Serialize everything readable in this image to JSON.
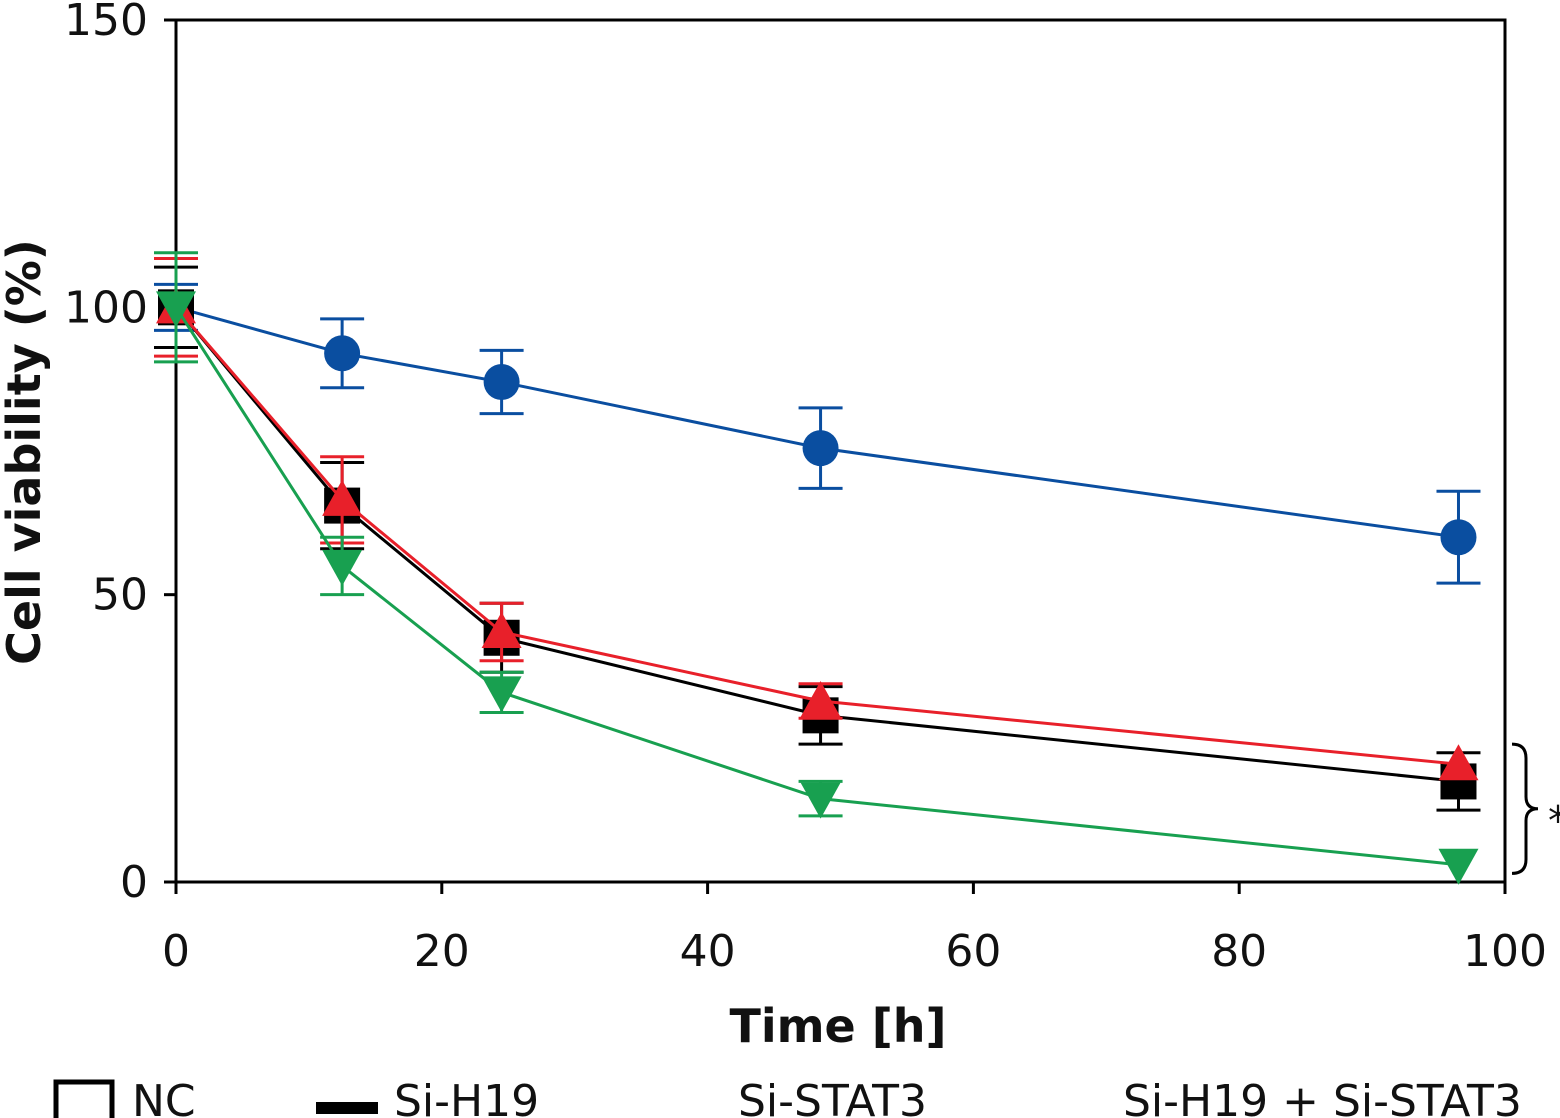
{
  "chart_data": {
    "type": "line",
    "title": "",
    "xlabel": "Time [h]",
    "ylabel": "Cell viability (%)",
    "xlim": [
      0,
      100
    ],
    "ylim": [
      0,
      150
    ],
    "xticks": [
      0,
      20,
      40,
      60,
      80,
      100
    ],
    "yticks": [
      0,
      50,
      100,
      150
    ],
    "grid": false,
    "legend_position": "bottom",
    "x": [
      0,
      12.5,
      24.5,
      48.5,
      96.5
    ],
    "series": [
      {
        "name": "NC",
        "color": "#0a4ea0",
        "marker": "circle",
        "values": [
          100,
          92,
          87,
          75.5,
          60
        ],
        "errors": [
          4,
          6,
          5.5,
          7,
          8
        ]
      },
      {
        "name": "Si-H19",
        "color": "#000000",
        "marker": "square",
        "values": [
          100,
          65.5,
          42.5,
          29,
          17.5
        ],
        "errors": [
          7,
          7.5,
          6,
          5,
          5
        ]
      },
      {
        "name": "Si-STAT3",
        "color": "#e8202a",
        "marker": "triangle-up",
        "values": [
          100,
          66.5,
          43.5,
          31.5,
          20.5
        ],
        "errors": [
          8.5,
          7.5,
          5,
          3,
          0
        ]
      },
      {
        "name": "Si-H19 + Si-STAT3",
        "color": "#18a050",
        "marker": "triangle-down",
        "values": [
          100,
          55,
          33,
          14.5,
          3
        ],
        "errors": [
          9.5,
          5,
          3.5,
          3,
          0
        ]
      }
    ],
    "annotations": [
      {
        "text": "*",
        "applies_to": [
          "Si-H19",
          "Si-STAT3",
          "Si-H19 + Si-STAT3"
        ]
      }
    ]
  }
}
